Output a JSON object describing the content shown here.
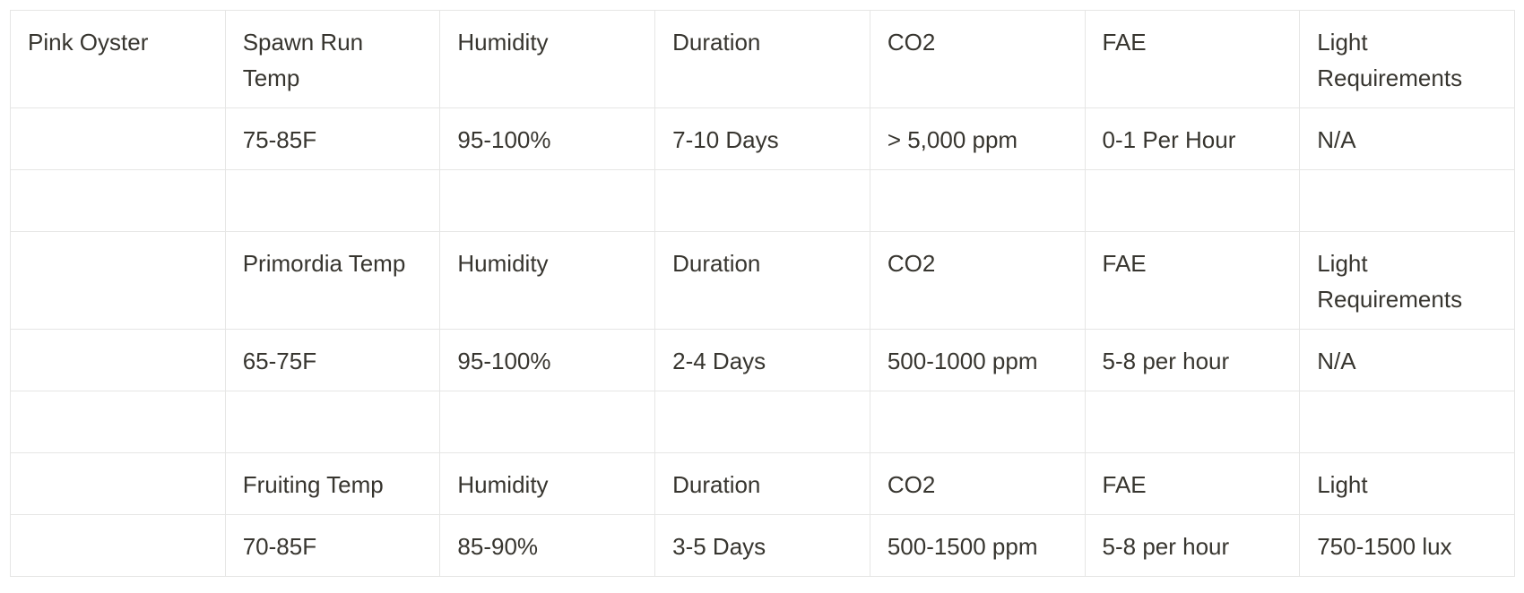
{
  "table": {
    "rows": [
      [
        "Pink Oyster",
        "Spawn Run Temp",
        "Humidity",
        "Duration",
        "CO2",
        "FAE",
        "Light Requirements"
      ],
      [
        null,
        "75-85F",
        "95-100%",
        "7-10 Days",
        "> 5,000 ppm",
        "0-1 Per Hour",
        "N/A"
      ],
      [
        null,
        null,
        null,
        null,
        null,
        null,
        null
      ],
      [
        null,
        "Primordia Temp",
        "Humidity",
        "Duration",
        "CO2",
        "FAE",
        "Light Requirements"
      ],
      [
        null,
        "65-75F",
        "95-100%",
        "2-4 Days",
        "500-1000 ppm",
        "5-8 per hour",
        "N/A"
      ],
      [
        null,
        null,
        null,
        null,
        null,
        null,
        null
      ],
      [
        null,
        "Fruiting Temp",
        "Humidity",
        "Duration",
        "CO2",
        "FAE",
        "Light"
      ],
      [
        null,
        "70-85F",
        "85-90%",
        "3-5 Days",
        "500-1500 ppm",
        "5-8 per hour",
        "750-1500 lux"
      ]
    ]
  }
}
